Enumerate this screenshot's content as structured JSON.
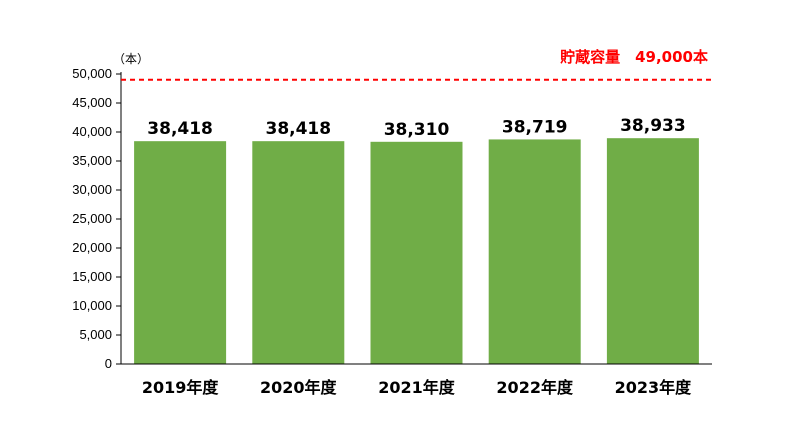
{
  "chart_data": {
    "type": "bar",
    "unit_label": "（本）",
    "categories": [
      "2019年度",
      "2020年度",
      "2021年度",
      "2022年度",
      "2023年度"
    ],
    "values": [
      38418,
      38418,
      38310,
      38719,
      38933
    ],
    "data_labels": [
      "38,418",
      "38,418",
      "38,310",
      "38,719",
      "38,933"
    ],
    "ylim": [
      0,
      50000
    ],
    "yticks": [
      0,
      5000,
      10000,
      15000,
      20000,
      25000,
      30000,
      35000,
      40000,
      45000,
      50000
    ],
    "ytick_labels": [
      "0",
      "5,000",
      "10,000",
      "15,000",
      "20,000",
      "25,000",
      "30,000",
      "35,000",
      "40,000",
      "45,000",
      "50,000"
    ],
    "reference_line": {
      "value": 49000,
      "label": "貯蔵容量　49,000本",
      "style": "dashed",
      "color": "#ff0000"
    },
    "bar_color": "#70ad47",
    "grid": false,
    "legend": "none"
  }
}
